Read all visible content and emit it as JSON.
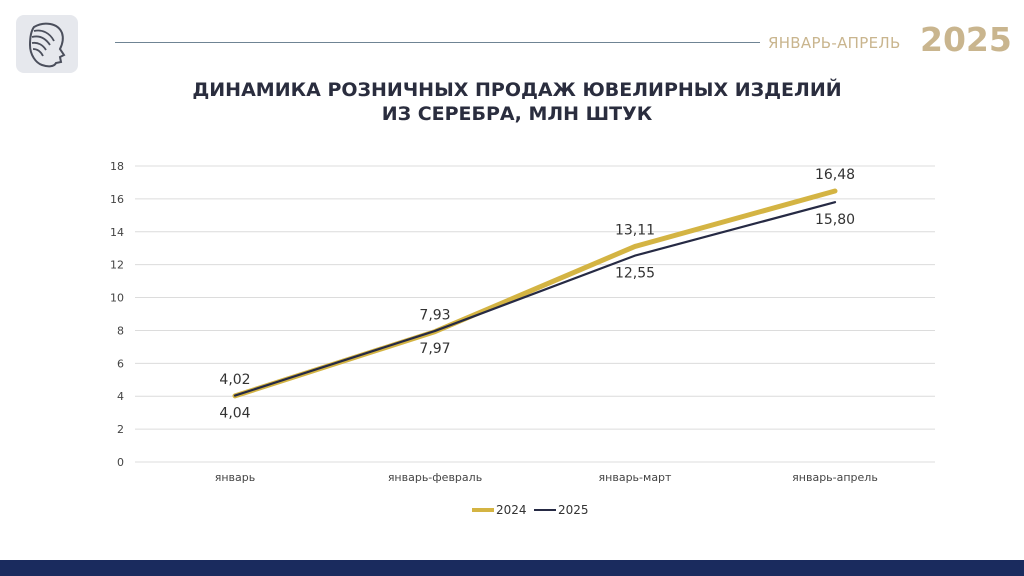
{
  "header": {
    "period": "ЯНВАРЬ-АПРЕЛЬ",
    "year": "2025",
    "logo_icon": "woman-profile-logo-icon"
  },
  "chart_data": {
    "type": "line",
    "title_line1": "ДИНАМИКА РОЗНИЧНЫХ ПРОДАЖ ЮВЕЛИРНЫХ ИЗДЕЛИЙ",
    "title_line2": "ИЗ СЕРЕБРА, МЛН ШТУК",
    "categories": [
      "январь",
      "январь-февраль",
      "январь-март",
      "январь-апрель"
    ],
    "ylim": [
      0,
      18
    ],
    "yticks": [
      0,
      2,
      4,
      6,
      8,
      10,
      12,
      14,
      16,
      18
    ],
    "grid": true,
    "legend_position": "bottom",
    "series": [
      {
        "name": "2024",
        "values": [
          4.02,
          7.93,
          13.11,
          16.48
        ],
        "labels": [
          "4,02",
          "7,93",
          "13,11",
          "16,48"
        ],
        "color": "#d4b443",
        "label_position": "above"
      },
      {
        "name": "2025",
        "values": [
          4.04,
          7.97,
          12.55,
          15.8
        ],
        "labels": [
          "4,04",
          "7,97",
          "12,55",
          "15,80"
        ],
        "color": "#262a44",
        "label_position": "below"
      }
    ]
  },
  "colors": {
    "accent_gold": "#c9b58e",
    "footer": "#1a2b5e"
  }
}
